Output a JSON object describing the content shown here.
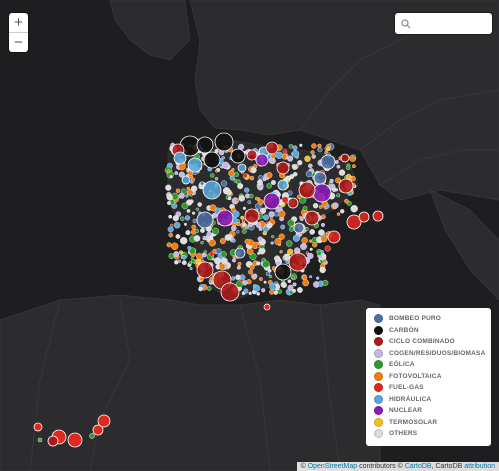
{
  "map": {
    "zoom_in_label": "+",
    "zoom_out_label": "−",
    "search_placeholder": "",
    "colors": {
      "land": "#2b2b2d",
      "water": "#1e1e20",
      "borders": "#3c3c40"
    }
  },
  "legend": {
    "items": [
      {
        "label": "BOMBEO PURO",
        "color": "#4a6fa5"
      },
      {
        "label": "CARBÓN",
        "color": "#111111"
      },
      {
        "label": "CICLO COMBINADO",
        "color": "#b01818"
      },
      {
        "label": "COGEN/RESIDUOS/BIOMASA",
        "color": "#c6b8e0"
      },
      {
        "label": "EÓLICA",
        "color": "#2e9a2e"
      },
      {
        "label": "FOTOVOLTAICA",
        "color": "#f07d10"
      },
      {
        "label": "FUEL-GAS",
        "color": "#e0281d"
      },
      {
        "label": "HIDRÁULICA",
        "color": "#5aa7db"
      },
      {
        "label": "NUCLEAR",
        "color": "#8a1bb5"
      },
      {
        "label": "TERMOSOLAR",
        "color": "#f2c01e"
      },
      {
        "label": "OTHERS",
        "color": "#dddddd"
      }
    ]
  },
  "attribution": {
    "prefix": "©",
    "osm": "OpenStreetMap",
    "contributors": "contributors ©",
    "cartodb": "CartoDB",
    "suffix": ", CartoDB",
    "attribution_link": "attribution"
  }
}
